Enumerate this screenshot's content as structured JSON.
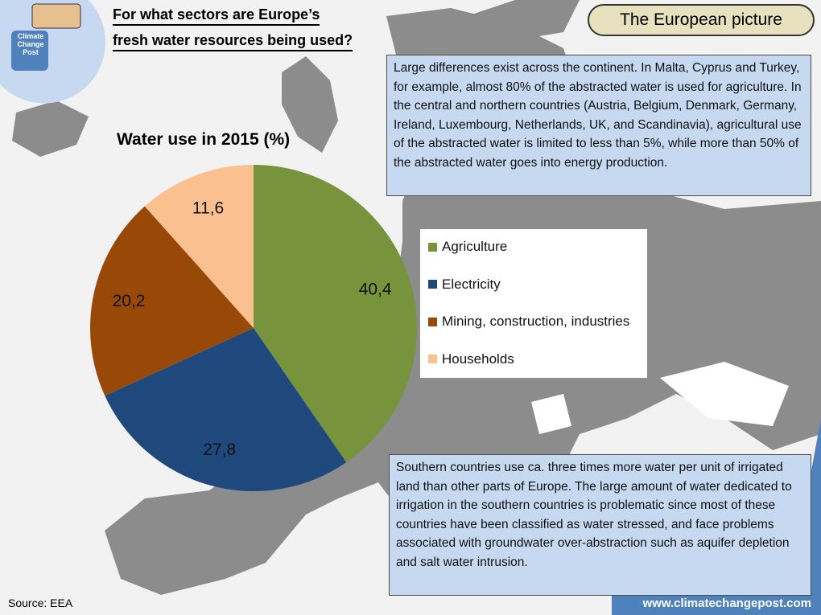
{
  "header": {
    "title_lines": [
      "For what sectors are Europe’s",
      "fresh water resources being used?"
    ],
    "badge": "The European picture",
    "logo": "Climate Change Post"
  },
  "text_boxes": [
    "Large differences exist across the continent. In Malta, Cyprus and Turkey, for example, almost 80% of the abstracted water is used for agriculture. In the central and northern countries (Austria, Belgium, Denmark, Germany, Ireland, Luxembourg, Netherlands, UK, and Scandinavia), agricultural use of the abstracted water is limited to less than 5%, while more than 50% of the abstracted water goes into energy production.",
    "Southern countries use ca. three times more water per unit of irrigated land than other parts of Europe. The large amount of water dedicated to irrigation in the southern countries is problematic since most of these countries have been classified as water stressed, and face problems associated with groundwater over-abstraction such as aquifer depletion and salt water intrusion."
  ],
  "footer": {
    "source": "Source: EEA",
    "website": "www.climatechangepost.com"
  },
  "chart_data": {
    "type": "pie",
    "title": "Water use in 2015 (%)",
    "categories": [
      "Agriculture",
      "Electricity",
      "Mining, construction, industries",
      "Households"
    ],
    "values": [
      40.4,
      27.8,
      20.2,
      11.6
    ],
    "value_labels": [
      "40,4",
      "27,8",
      "20,2",
      "11,6"
    ],
    "colors": [
      "#77933c",
      "#1f497d",
      "#984807",
      "#fac090"
    ]
  }
}
